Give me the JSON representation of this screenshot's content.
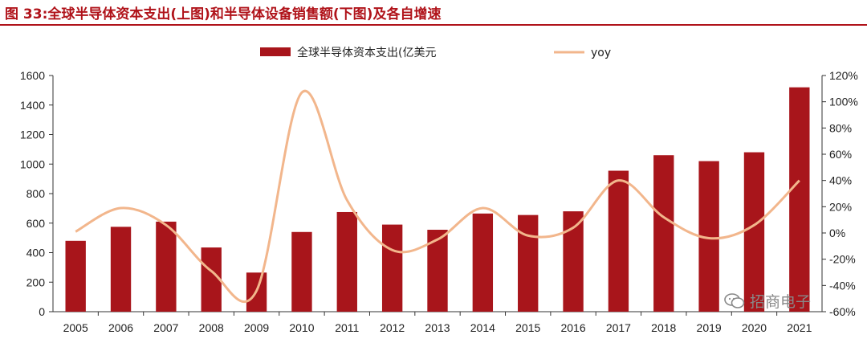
{
  "figure": {
    "title": "图 33:全球半导体资本支出(上图)和半导体设备销售额(下图)及各自增速"
  },
  "colors": {
    "bar": "#a8151b",
    "line": "#f2b68c",
    "title": "#b0131a"
  },
  "watermark": {
    "text": "招商电子",
    "icon": "wechat-icon"
  },
  "chart_data": {
    "type": "bar",
    "title": "",
    "categories": [
      "2005",
      "2006",
      "2007",
      "2008",
      "2009",
      "2010",
      "2011",
      "2012",
      "2013",
      "2014",
      "2015",
      "2016",
      "2017",
      "2018",
      "2019",
      "2020",
      "2021"
    ],
    "series": [
      {
        "name": "全球半导体资本支出(亿美元",
        "type": "bar",
        "axis": "left",
        "values": [
          480,
          575,
          610,
          435,
          265,
          540,
          675,
          590,
          555,
          665,
          655,
          680,
          955,
          1060,
          1020,
          1080,
          1520
        ]
      },
      {
        "name": "yoy",
        "type": "line",
        "axis": "right",
        "values": [
          0.01,
          0.19,
          0.06,
          -0.29,
          -0.44,
          1.07,
          0.25,
          -0.13,
          -0.05,
          0.19,
          -0.02,
          0.04,
          0.4,
          0.12,
          -0.04,
          0.06,
          0.4
        ]
      }
    ],
    "ylim": [
      0,
      1600
    ],
    "yticks": [
      "0",
      "200",
      "400",
      "600",
      "800",
      "1000",
      "1200",
      "1400",
      "1600"
    ],
    "y2lim": [
      -0.6,
      1.2
    ],
    "y2ticks": [
      "-60%",
      "-40%",
      "-20%",
      "0%",
      "20%",
      "40%",
      "60%",
      "80%",
      "100%",
      "120%"
    ],
    "xlabel": "",
    "ylabel": "",
    "legend": {
      "position": "top-center",
      "bar_label": "全球半导体资本支出(亿美元",
      "line_label": "yoy"
    }
  }
}
